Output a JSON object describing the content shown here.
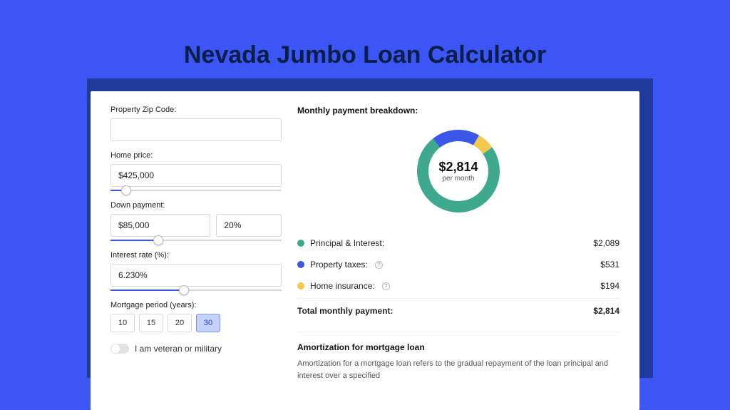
{
  "page": {
    "title": "Nevada Jumbo Loan Calculator",
    "bg_color": "#3b56f5",
    "backdrop_color": "#1f3a9b",
    "card_bg": "#ffffff"
  },
  "form": {
    "zip": {
      "label": "Property Zip Code:",
      "value": ""
    },
    "home_price": {
      "label": "Home price:",
      "value": "$425,000",
      "slider_pct": 9
    },
    "down_payment": {
      "label": "Down payment:",
      "amount": "$85,000",
      "percent": "20%",
      "slider_pct": 28
    },
    "interest_rate": {
      "label": "Interest rate (%):",
      "value": "6.230%",
      "slider_pct": 43
    },
    "mortgage_period": {
      "label": "Mortgage period (years):",
      "options": [
        "10",
        "15",
        "20",
        "30"
      ],
      "selected": "30"
    },
    "veteran": {
      "label": "I am veteran or military",
      "checked": false
    }
  },
  "breakdown": {
    "title": "Monthly payment breakdown:",
    "center_amount": "$2,814",
    "center_sub": "per month",
    "donut": {
      "slices": [
        {
          "label": "Principal & Interest:",
          "value": "$2,089",
          "pct": 74.2,
          "color": "#3fa98e",
          "has_info": false
        },
        {
          "label": "Property taxes:",
          "value": "$531",
          "pct": 18.9,
          "color": "#3a57e8",
          "has_info": true
        },
        {
          "label": "Home insurance:",
          "value": "$194",
          "pct": 6.9,
          "color": "#f2c94c",
          "has_info": true
        }
      ],
      "stroke_width": 16
    },
    "total": {
      "label": "Total monthly payment:",
      "value": "$2,814"
    }
  },
  "amortization": {
    "title": "Amortization for mortgage loan",
    "body": "Amortization for a mortgage loan refers to the gradual repayment of the loan principal and interest over a specified"
  }
}
